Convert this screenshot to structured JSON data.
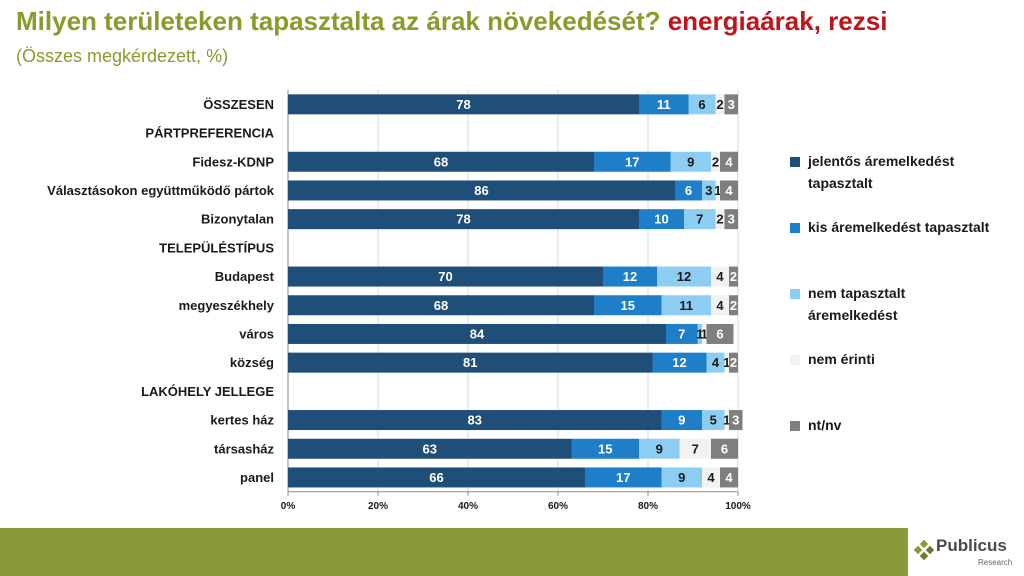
{
  "title": {
    "part1": "Milyen területeken tapasztalta az árak növekedését? ",
    "part2": "energiaárak, rezsi",
    "subtitle": "(Összes megkérdezett, %)"
  },
  "colors": {
    "title_green": "#8a9a2b",
    "title_red": "#c0141c",
    "footer": "#8a9a3a"
  },
  "chart_data": {
    "type": "bar",
    "orientation": "horizontal",
    "stacked": true,
    "categories": [
      "ÖSSZESEN",
      "PÁRTPREFERENCIA",
      "Fidesz-KDNP",
      "Választásokon együttműködő pártok",
      "Bizonytalan",
      "TELEPÜLÉSTÍPUS",
      "Budapest",
      "megyeszékhely",
      "város",
      "község",
      "LAKÓHELY JELLEGE",
      "kertes ház",
      "társasház",
      "panel"
    ],
    "series": [
      {
        "name": "jelentős áremelkedést tapasztalt",
        "color": "#1f4e79",
        "text_color": "#ffffff",
        "values": [
          78,
          null,
          68,
          86,
          78,
          null,
          70,
          68,
          84,
          81,
          null,
          83,
          63,
          66
        ]
      },
      {
        "name": "kis áremelkedést tapasztalt",
        "color": "#1e7ec8",
        "text_color": "#ffffff",
        "values": [
          11,
          null,
          17,
          6,
          10,
          null,
          12,
          15,
          7,
          12,
          null,
          9,
          15,
          17
        ]
      },
      {
        "name": "nem tapasztalt áremelkedést",
        "color": "#8ecdf2",
        "text_color": "#1a1a1a",
        "values": [
          6,
          null,
          9,
          3,
          7,
          null,
          12,
          11,
          1,
          4,
          null,
          5,
          9,
          9
        ]
      },
      {
        "name": "nem érinti",
        "color": "#f2f2f2",
        "text_color": "#1a1a1a",
        "values": [
          2,
          null,
          2,
          1,
          2,
          null,
          4,
          4,
          1,
          1,
          null,
          1,
          7,
          4
        ]
      },
      {
        "name": "nt/nv",
        "color": "#7f7f7f",
        "text_color": "#ffffff",
        "values": [
          3,
          null,
          4,
          4,
          3,
          null,
          2,
          2,
          6,
          2,
          null,
          3,
          6,
          4
        ]
      }
    ],
    "xlim": [
      0,
      100
    ],
    "x_ticks": [
      "0%",
      "20%",
      "40%",
      "60%",
      "80%",
      "100%"
    ],
    "legend_position": "right"
  },
  "logo": {
    "name": "Publicus",
    "sub": "Research"
  }
}
